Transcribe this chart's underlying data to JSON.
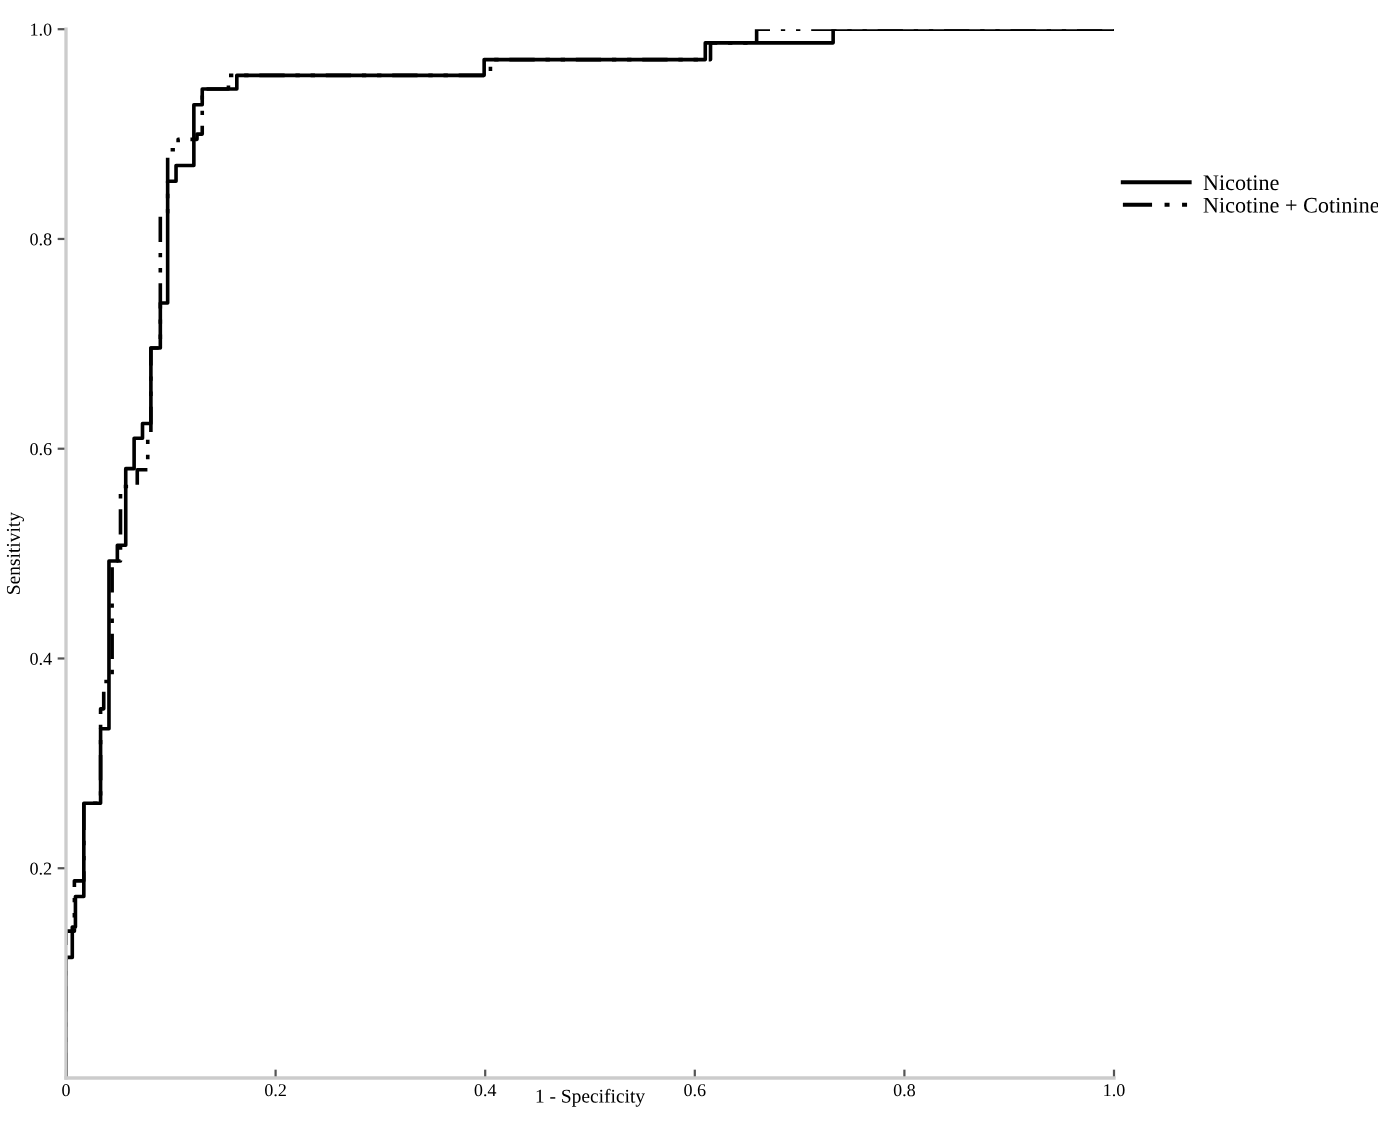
{
  "chart_data": {
    "type": "step",
    "xlabel": "1 - Specificity",
    "ylabel": "Sensitivity",
    "xlim": [
      0,
      1.0
    ],
    "ylim": [
      0,
      1.0
    ],
    "xticks": [
      {
        "value": 0,
        "label": "0"
      },
      0.2,
      0.4,
      0.6,
      0.8,
      {
        "value": 1.0,
        "label": "1.0"
      }
    ],
    "yticks": [
      0.2,
      0.4,
      0.6,
      0.8,
      {
        "value": 1.0,
        "label": "1.0"
      }
    ],
    "grid": false,
    "legend": "top right",
    "series": [
      {
        "name": "Nicotine",
        "color": "#000000",
        "line_style": "solid",
        "x": [
          0,
          0,
          0.006,
          0.009,
          0.017,
          0.033,
          0.041,
          0.049,
          0.057,
          0.065,
          0.073,
          0.081,
          0.09,
          0.097,
          0.105,
          0.122,
          0.13,
          0.163,
          0.399,
          0.61,
          0.732,
          1.0
        ],
        "values": [
          0,
          0.115,
          0.144,
          0.173,
          0.262,
          0.333,
          0.493,
          0.508,
          0.581,
          0.61,
          0.624,
          0.696,
          0.739,
          0.855,
          0.87,
          0.928,
          0.943,
          0.956,
          0.971,
          0.987,
          1.0,
          1.0
        ]
      },
      {
        "name": "Nicotine + Cotinine",
        "color": "#000000",
        "line_style": "dashed",
        "x": [
          0,
          0,
          0.008,
          0.017,
          0.033,
          0.036,
          0.044,
          0.052,
          0.068,
          0.078,
          0.081,
          0.09,
          0.097,
          0.107,
          0.125,
          0.13,
          0.155,
          0.405,
          0.615,
          0.659,
          1.0
        ],
        "values": [
          0,
          0.14,
          0.188,
          0.262,
          0.352,
          0.378,
          0.493,
          0.564,
          0.58,
          0.61,
          0.696,
          0.825,
          0.885,
          0.895,
          0.9,
          0.943,
          0.956,
          0.971,
          0.987,
          1.0,
          1.0
        ]
      }
    ]
  }
}
